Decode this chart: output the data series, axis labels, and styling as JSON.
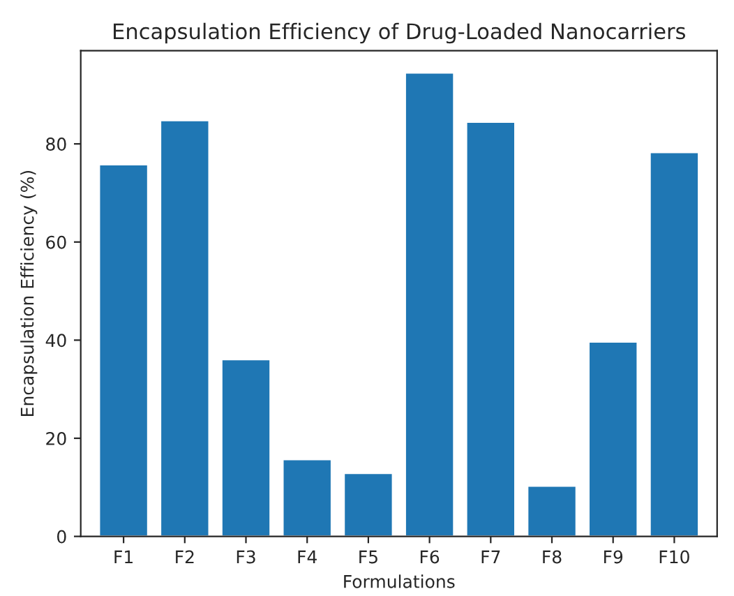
{
  "chart_data": {
    "type": "bar",
    "title": "Encapsulation Efficiency of Drug-Loaded Nanocarriers",
    "xlabel": "Formulations",
    "ylabel": "Encapsulation Efficiency (%)",
    "categories": [
      "F1",
      "F2",
      "F3",
      "F4",
      "F5",
      "F6",
      "F7",
      "F8",
      "F9",
      "F10"
    ],
    "values": [
      75.8,
      84.8,
      36.1,
      15.7,
      12.9,
      94.5,
      84.5,
      10.3,
      39.7,
      78.3
    ],
    "color": "#1f77b4",
    "ylim": [
      0,
      99
    ],
    "yticks": [
      0,
      20,
      40,
      60,
      80
    ],
    "grid": false,
    "legend": false
  }
}
